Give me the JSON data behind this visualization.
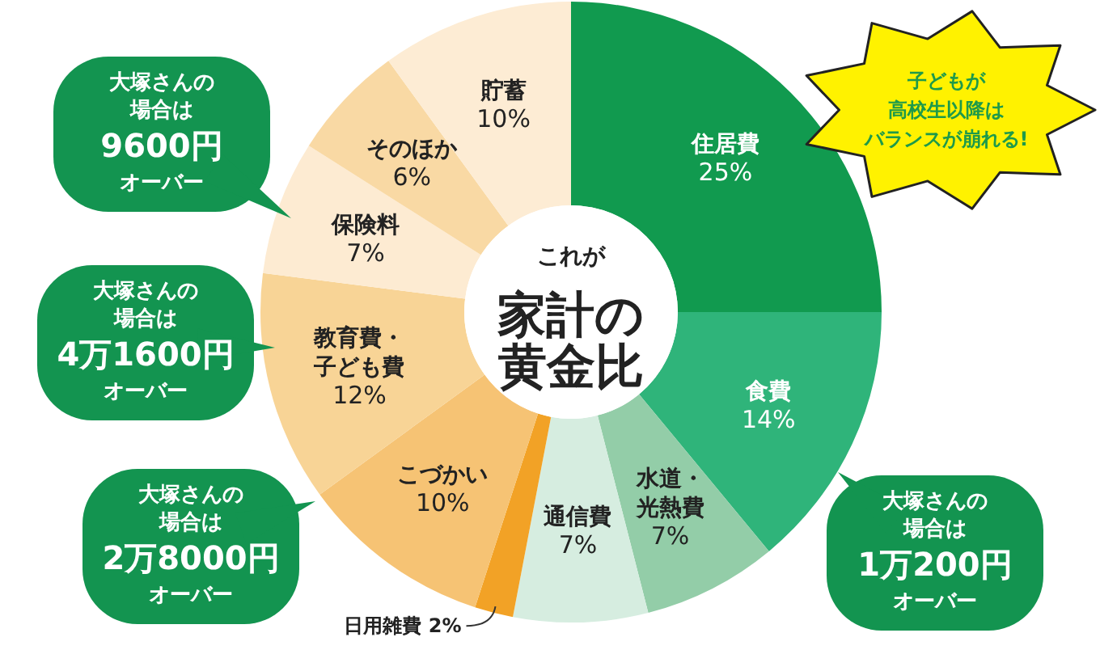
{
  "chart_data": {
    "type": "donut",
    "title": "これが家計の黄金比",
    "categories": [
      "住居費",
      "食費",
      "水道・光熱費",
      "通信費",
      "日用雑費",
      "こづかい",
      "教育費・子ども費",
      "保険料",
      "そのほか",
      "貯蓄"
    ],
    "values": [
      25,
      14,
      7,
      7,
      2,
      10,
      12,
      7,
      6,
      10
    ],
    "value_labels": [
      "25%",
      "14%",
      "7%",
      "7%",
      "2%",
      "10%",
      "12%",
      "7%",
      "6%",
      "10%"
    ],
    "colors": [
      "#119a4f",
      "#2fb47a",
      "#93cda8",
      "#d6ede0",
      "#f2a226",
      "#f6c374",
      "#f8d496",
      "#fdebd2",
      "#f9d9a4",
      "#fdecd4"
    ],
    "annotations": [
      "大塚さんの場合は9600円オーバー",
      "大塚さんの場合は4万1600円オーバー",
      "大塚さんの場合は2万8000円オーバー",
      "大塚さんの場合は1万200円オーバー",
      "子どもが高校生以降はバランスが崩れる!"
    ]
  }
}
